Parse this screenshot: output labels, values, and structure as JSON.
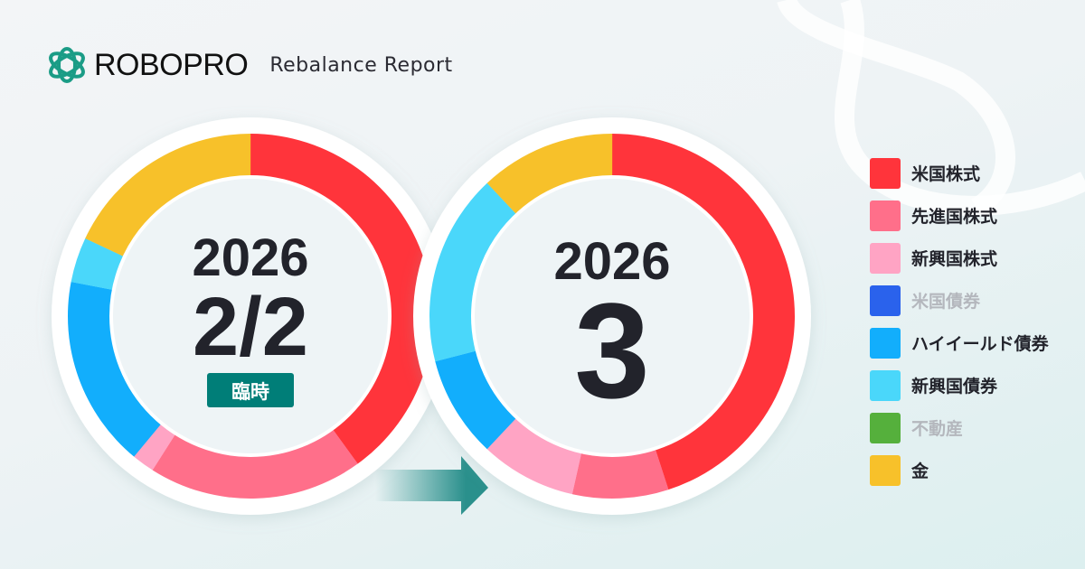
{
  "header": {
    "brand": "ROBOPRO",
    "subtitle": "Rebalance Report"
  },
  "chart_data": [
    {
      "type": "pie",
      "title_year": "2026",
      "title_date": "2/2",
      "badge": "臨時",
      "categories": [
        "米国株式",
        "先進国株式",
        "新興国株式",
        "ハイイールド債券",
        "新興国債券",
        "金"
      ],
      "values": [
        40,
        19,
        2,
        17,
        4,
        18
      ],
      "unit": "%"
    },
    {
      "type": "pie",
      "title_year": "2026",
      "title_date": "3",
      "categories": [
        "米国株式",
        "先進国株式",
        "新興国株式",
        "ハイイールド債券",
        "新興国債券",
        "金"
      ],
      "values": [
        45,
        8.5,
        8.5,
        9,
        17,
        12
      ],
      "unit": "%"
    }
  ],
  "legend": [
    {
      "label": "米国株式",
      "color": "#ff343b",
      "dim": false
    },
    {
      "label": "先進国株式",
      "color": "#ff6f8a",
      "dim": false
    },
    {
      "label": "新興国株式",
      "color": "#ffa4c4",
      "dim": false
    },
    {
      "label": "米国債券",
      "color": "#2a62ec",
      "dim": true
    },
    {
      "label": "ハイイールド債券",
      "color": "#12aefc",
      "dim": false
    },
    {
      "label": "新興国債券",
      "color": "#4ad7fa",
      "dim": false
    },
    {
      "label": "不動産",
      "color": "#55b03c",
      "dim": true
    },
    {
      "label": "金",
      "color": "#f7c12a",
      "dim": false
    }
  ],
  "colors": {
    "badge": "#007e78",
    "arrow": "#2a908c",
    "text": "#22232b"
  }
}
